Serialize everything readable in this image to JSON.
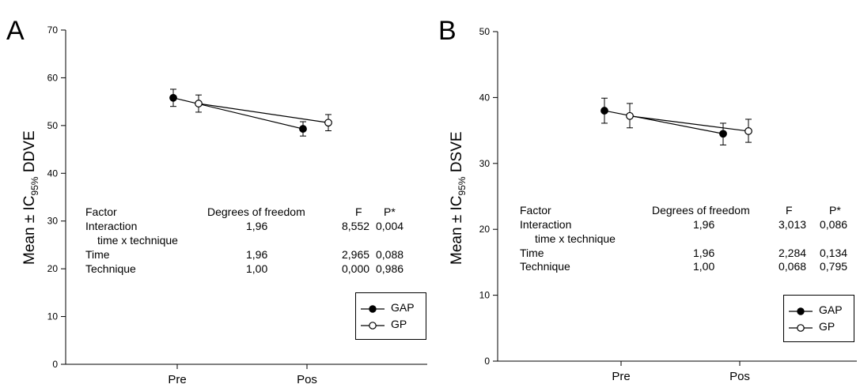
{
  "chart_data": [
    {
      "type": "line",
      "panel_label": "A",
      "ylabel_main": "Mean ± IC",
      "ylabel_sub": "95%",
      "ylabel_tail": "DDVE",
      "categories": [
        "Pre",
        "Pos"
      ],
      "ylim": [
        0,
        70
      ],
      "yticks": [
        "0",
        "10",
        "20",
        "30",
        "40",
        "50",
        "60",
        "70"
      ],
      "series": [
        {
          "name": "GAP",
          "marker": "filled",
          "values": [
            55.8,
            49.3
          ],
          "ci": [
            [
              54.0,
              57.6
            ],
            [
              47.8,
              50.8
            ]
          ]
        },
        {
          "name": "GP",
          "marker": "open",
          "values": [
            54.6,
            50.6
          ],
          "ci": [
            [
              52.8,
              56.4
            ],
            [
              48.9,
              52.3
            ]
          ]
        }
      ],
      "legend_position": "bottom-right",
      "stats_table": {
        "headers": [
          "Factor",
          "Degrees of freedom",
          "F",
          "P*"
        ],
        "rows": [
          {
            "factor": "Interaction",
            "factor2": "time  x  technique",
            "df": "1,96",
            "f": "8,552",
            "p": "0,004"
          },
          {
            "factor": "Time",
            "factor2": "",
            "df": "1,96",
            "f": "2,965",
            "p": "0,088"
          },
          {
            "factor": "Technique",
            "factor2": "",
            "df": "1,00",
            "f": "0,000",
            "p": "0,986"
          }
        ]
      }
    },
    {
      "type": "line",
      "panel_label": "B",
      "ylabel_main": "Mean ± IC",
      "ylabel_sub": "95%",
      "ylabel_tail": "DSVE",
      "categories": [
        "Pre",
        "Pos"
      ],
      "ylim": [
        0,
        50
      ],
      "yticks": [
        "0",
        "10",
        "20",
        "30",
        "40",
        "50"
      ],
      "series": [
        {
          "name": "GAP",
          "marker": "filled",
          "values": [
            38.0,
            34.5
          ],
          "ci": [
            [
              36.1,
              39.9
            ],
            [
              32.8,
              36.1
            ]
          ]
        },
        {
          "name": "GP",
          "marker": "open",
          "values": [
            37.2,
            34.9
          ],
          "ci": [
            [
              35.4,
              39.1
            ],
            [
              33.2,
              36.7
            ]
          ]
        }
      ],
      "legend_position": "bottom-right",
      "stats_table": {
        "headers": [
          "Factor",
          "Degrees of freedom",
          "F",
          "P*"
        ],
        "rows": [
          {
            "factor": "Interaction",
            "factor2": "time  x  technique",
            "df": "1,96",
            "f": "3,013",
            "p": "0,086"
          },
          {
            "factor": "Time",
            "factor2": "",
            "df": "1,96",
            "f": "2,284",
            "p": "0,134"
          },
          {
            "factor": "Technique",
            "factor2": "",
            "df": "1,00",
            "f": "0,068",
            "p": "0,795"
          }
        ]
      }
    }
  ]
}
